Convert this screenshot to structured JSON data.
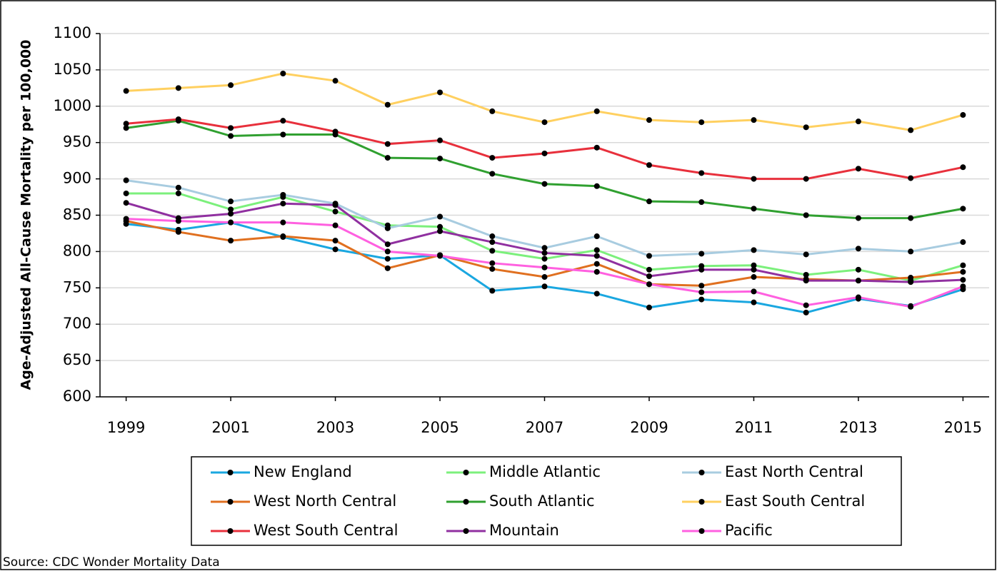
{
  "chart_data": {
    "type": "line",
    "y_label": "Age-Adjusted All-Cause Mortality per 100,000",
    "source": "Source: CDC Wonder Mortality Data",
    "x": [
      1999,
      2000,
      2001,
      2002,
      2003,
      2004,
      2005,
      2006,
      2007,
      2008,
      2009,
      2010,
      2011,
      2012,
      2013,
      2014,
      2015
    ],
    "xlim": [
      1998.5,
      2015.5
    ],
    "xticks": [
      1999,
      2001,
      2003,
      2005,
      2007,
      2009,
      2011,
      2013,
      2015
    ],
    "ylim": [
      600,
      1100
    ],
    "yticks": [
      600,
      650,
      700,
      750,
      800,
      850,
      900,
      950,
      1000,
      1050,
      1100
    ],
    "grid": true,
    "marker_color": "#000000",
    "series": [
      {
        "name": "New England",
        "color": "#1aa7e0",
        "values": [
          838,
          830,
          840,
          820,
          803,
          790,
          795,
          746,
          752,
          742,
          723,
          734,
          730,
          716,
          735,
          725,
          748
        ]
      },
      {
        "name": "Middle Atlantic",
        "color": "#7cf07c",
        "values": [
          880,
          880,
          858,
          875,
          855,
          836,
          834,
          801,
          790,
          802,
          775,
          780,
          781,
          768,
          775,
          760,
          781
        ]
      },
      {
        "name": "East North Central",
        "color": "#a8cce0",
        "values": [
          898,
          888,
          869,
          878,
          866,
          832,
          848,
          821,
          805,
          821,
          794,
          797,
          802,
          796,
          804,
          800,
          813
        ]
      },
      {
        "name": "West North Central",
        "color": "#e07020",
        "values": [
          842,
          827,
          815,
          821,
          815,
          777,
          795,
          776,
          765,
          783,
          755,
          753,
          765,
          762,
          760,
          764,
          772
        ]
      },
      {
        "name": "South Atlantic",
        "color": "#30a030",
        "values": [
          970,
          980,
          959,
          961,
          961,
          929,
          928,
          907,
          893,
          890,
          869,
          868,
          859,
          850,
          846,
          846,
          859
        ]
      },
      {
        "name": "East South Central",
        "color": "#ffd060",
        "values": [
          1021,
          1025,
          1029,
          1045,
          1035,
          1002,
          1019,
          993,
          978,
          993,
          981,
          978,
          981,
          971,
          979,
          967,
          988
        ]
      },
      {
        "name": "West South Central",
        "color": "#e8303c",
        "values": [
          976,
          982,
          970,
          980,
          965,
          948,
          953,
          929,
          935,
          943,
          919,
          908,
          900,
          900,
          914,
          901,
          916
        ]
      },
      {
        "name": "Mountain",
        "color": "#9030a0",
        "values": [
          867,
          846,
          852,
          866,
          864,
          810,
          828,
          813,
          798,
          794,
          766,
          775,
          775,
          760,
          760,
          758,
          761
        ]
      },
      {
        "name": "Pacific",
        "color": "#ff60e0",
        "values": [
          845,
          842,
          840,
          840,
          836,
          800,
          794,
          784,
          778,
          772,
          755,
          744,
          745,
          726,
          737,
          724,
          752
        ]
      }
    ]
  }
}
